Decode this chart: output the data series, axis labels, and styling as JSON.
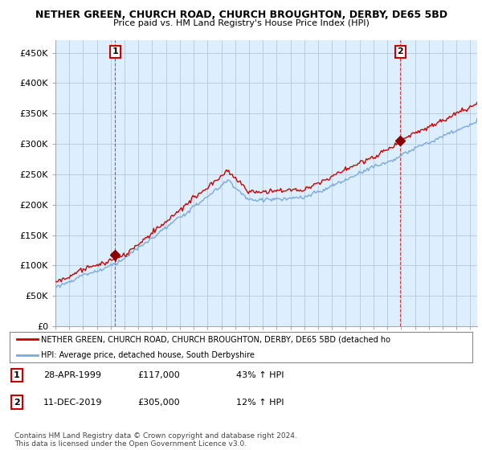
{
  "title": "NETHER GREEN, CHURCH ROAD, CHURCH BROUGHTON, DERBY, DE65 5BD",
  "subtitle": "Price paid vs. HM Land Registry's House Price Index (HPI)",
  "ylim": [
    0,
    470000
  ],
  "yticks": [
    0,
    50000,
    100000,
    150000,
    200000,
    250000,
    300000,
    350000,
    400000,
    450000
  ],
  "ytick_labels": [
    "£0",
    "£50K",
    "£100K",
    "£150K",
    "£200K",
    "£250K",
    "£300K",
    "£350K",
    "£400K",
    "£450K"
  ],
  "sale1_year": 1999.32,
  "sale1_price": 117000,
  "sale1_label": "1",
  "sale1_date": "28-APR-1999",
  "sale1_pct": "43% ↑ HPI",
  "sale2_year": 2019.95,
  "sale2_price": 305000,
  "sale2_label": "2",
  "sale2_date": "11-DEC-2019",
  "sale2_pct": "12% ↑ HPI",
  "hpi_color": "#7aaadd",
  "price_color": "#cc0000",
  "marker_color": "#880000",
  "background_color": "#ffffff",
  "plot_bg_color": "#ddeeff",
  "grid_color": "#bbccdd",
  "legend_label_price": "NETHER GREEN, CHURCH ROAD, CHURCH BROUGHTON, DERBY, DE65 5BD (detached ho",
  "legend_label_hpi": "HPI: Average price, detached house, South Derbyshire",
  "footnote": "Contains HM Land Registry data © Crown copyright and database right 2024.\nThis data is licensed under the Open Government Licence v3.0.",
  "xmin": 1995.0,
  "xmax": 2025.5
}
